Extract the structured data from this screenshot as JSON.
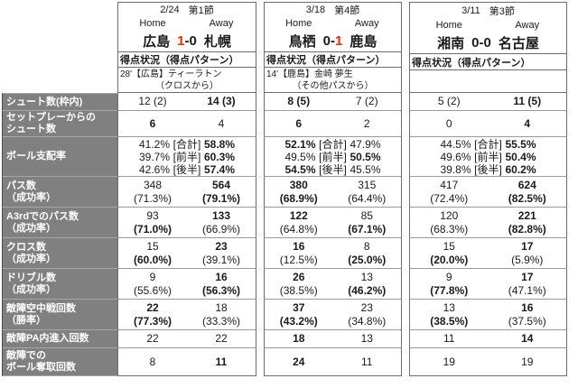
{
  "colors": {
    "score_red": "#ff2200",
    "label_bg": "#808080",
    "label_text": "#ffffff"
  },
  "ui": {
    "home_label": "Home",
    "away_label": "Away"
  },
  "row_labels": [
    {
      "l1": "シュート数(枠内)",
      "l2": ""
    },
    {
      "l1": "セットプレーからの",
      "l2": "シュート数"
    },
    {
      "l1": "ボール支配率",
      "l2": ""
    },
    {
      "l1": "パス数",
      "l2": "（成功率）"
    },
    {
      "l1": "A3rdでのパス数",
      "l2": "（成功率）"
    },
    {
      "l1": "クロス数",
      "l2": "（成功率）"
    },
    {
      "l1": "ドリブル数",
      "l2": "（成功率）"
    },
    {
      "l1": "敵陣空中戦回数",
      "l2": "（勝率）"
    },
    {
      "l1": "敵陣PA内進入回数",
      "l2": ""
    },
    {
      "l1": "敵陣での",
      "l2": "ボール奪取回数"
    }
  ],
  "matches": [
    {
      "date": "2/24",
      "round": "第1節",
      "home_team": "広島",
      "away_team": "札幌",
      "home_score": "1",
      "score_sep": "-",
      "away_score": "0",
      "goals_header": "得点状況（得点パターン）",
      "goal_line1": "28'【広島】ティーラトン",
      "goal_line2": "（クロスから）",
      "stats": {
        "shots": {
          "home": "12 (2)",
          "away": "14 (3)"
        },
        "setplay_shots": {
          "home": "6",
          "away": "4"
        },
        "possession": [
          {
            "home": "41.2%",
            "label": "[合計]",
            "away": "58.8%"
          },
          {
            "home": "39.7%",
            "label": "[前半]",
            "away": "60.3%"
          },
          {
            "home": "42.6%",
            "label": "[後半]",
            "away": "57.4%"
          }
        ],
        "passes": {
          "home": "348",
          "home_pct": "(71.3%)",
          "away": "564",
          "away_pct": "(79.1%)"
        },
        "a3rd_passes": {
          "home": "93",
          "home_pct": "(71.0%)",
          "away": "133",
          "away_pct": "(66.9%)"
        },
        "crosses": {
          "home": "15",
          "home_pct": "(60.0%)",
          "away": "23",
          "away_pct": "(39.1%)"
        },
        "dribbles": {
          "home": "9",
          "home_pct": "(55.6%)",
          "away": "16",
          "away_pct": "(56.3%)"
        },
        "aerials": {
          "home": "22",
          "home_pct": "(77.3%)",
          "away": "18",
          "away_pct": "(33.3%)"
        },
        "pa_entries": {
          "home": "22",
          "away": "22"
        },
        "ball_recoveries": {
          "home": "8",
          "away": "11"
        }
      }
    },
    {
      "date": "3/18",
      "round": "第4節",
      "home_team": "鳥栖",
      "away_team": "鹿島",
      "home_score": "0",
      "score_sep": "-",
      "away_score": "1",
      "goals_header": "得点状況（得点パターン）",
      "goal_line1": "14'【鹿島】金崎 夢生",
      "goal_line2": "（その他パスから）",
      "stats": {
        "shots": {
          "home": "8 (5)",
          "away": "7 (2)"
        },
        "setplay_shots": {
          "home": "6",
          "away": "2"
        },
        "possession": [
          {
            "home": "52.1%",
            "label": "[合計]",
            "away": "47.9%"
          },
          {
            "home": "49.5%",
            "label": "[前半]",
            "away": "50.5%"
          },
          {
            "home": "54.5%",
            "label": "[後半]",
            "away": "45.5%"
          }
        ],
        "passes": {
          "home": "380",
          "home_pct": "(68.9%)",
          "away": "315",
          "away_pct": "(64.4%)"
        },
        "a3rd_passes": {
          "home": "122",
          "home_pct": "(64.8%)",
          "away": "85",
          "away_pct": "(67.1%)"
        },
        "crosses": {
          "home": "16",
          "home_pct": "(12.5%)",
          "away": "8",
          "away_pct": "(25.0%)"
        },
        "dribbles": {
          "home": "26",
          "home_pct": "(38.5%)",
          "away": "13",
          "away_pct": "(46.2%)"
        },
        "aerials": {
          "home": "37",
          "home_pct": "(43.2%)",
          "away": "23",
          "away_pct": "(34.8%)"
        },
        "pa_entries": {
          "home": "18",
          "away": "13"
        },
        "ball_recoveries": {
          "home": "24",
          "away": "11"
        }
      }
    },
    {
      "date": "3/11",
      "round": "第3節",
      "home_team": "湘南",
      "away_team": "名古屋",
      "home_score": "0",
      "score_sep": "-",
      "away_score": "0",
      "goals_header": "得点状況（得点パターン）",
      "goal_line1": "",
      "goal_line2": "",
      "stats": {
        "shots": {
          "home": "5 (2)",
          "away": "11 (5)"
        },
        "setplay_shots": {
          "home": "0",
          "away": "4"
        },
        "possession": [
          {
            "home": "44.5%",
            "label": "[合計]",
            "away": "55.5%"
          },
          {
            "home": "49.6%",
            "label": "[前半]",
            "away": "50.4%"
          },
          {
            "home": "39.8%",
            "label": "[後半]",
            "away": "60.2%"
          }
        ],
        "passes": {
          "home": "417",
          "home_pct": "(72.4%)",
          "away": "624",
          "away_pct": "(82.5%)"
        },
        "a3rd_passes": {
          "home": "120",
          "home_pct": "(68.3%)",
          "away": "221",
          "away_pct": "(82.8%)"
        },
        "crosses": {
          "home": "15",
          "home_pct": "(20.0%)",
          "away": "17",
          "away_pct": "(5.9%)"
        },
        "dribbles": {
          "home": "9",
          "home_pct": "(77.8%)",
          "away": "17",
          "away_pct": "(47.1%)"
        },
        "aerials": {
          "home": "13",
          "home_pct": "(38.5%)",
          "away": "16",
          "away_pct": "(37.5%)"
        },
        "pa_entries": {
          "home": "11",
          "away": "14"
        },
        "ball_recoveries": {
          "home": "19",
          "away": "19"
        }
      }
    }
  ]
}
